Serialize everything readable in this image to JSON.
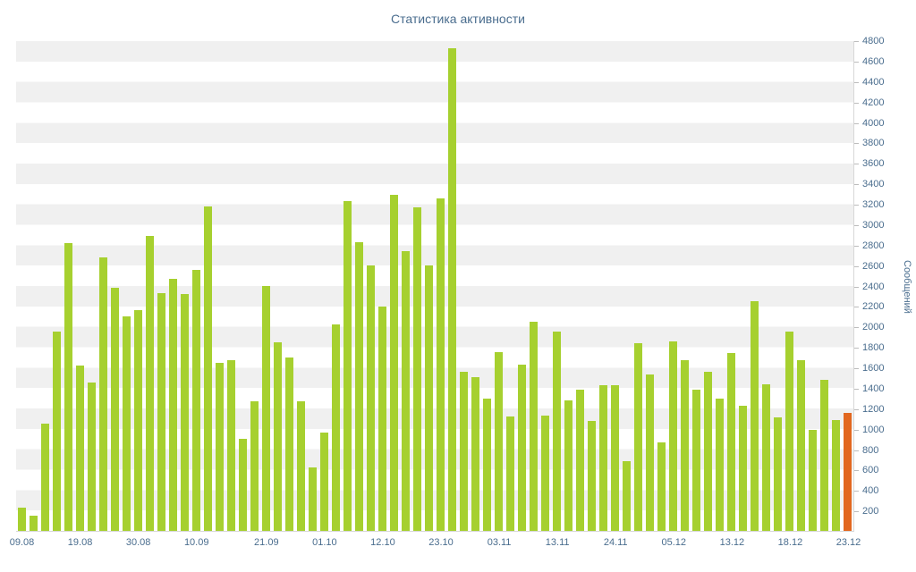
{
  "page": {
    "background": "#ffffff"
  },
  "chart_data": {
    "type": "bar",
    "title": "Статистика активности",
    "xlabel": "",
    "ylabel": "Сообщений",
    "y_axis_side": "right",
    "ylim": [
      0,
      4800
    ],
    "y_tick_step": 200,
    "grid": "striped-horizontal-bands",
    "legend": "none",
    "y_ticks": [
      200,
      400,
      600,
      800,
      1000,
      1200,
      1400,
      1600,
      1800,
      2000,
      2200,
      2400,
      2600,
      2800,
      3000,
      3200,
      3400,
      3600,
      3800,
      4000,
      4200,
      4400,
      4600,
      4800
    ],
    "x_ticks": [
      {
        "label": "09.08",
        "index": 0
      },
      {
        "label": "19.08",
        "index": 5
      },
      {
        "label": "30.08",
        "index": 10
      },
      {
        "label": "10.09",
        "index": 15
      },
      {
        "label": "21.09",
        "index": 21
      },
      {
        "label": "01.10",
        "index": 26
      },
      {
        "label": "12.10",
        "index": 31
      },
      {
        "label": "23.10",
        "index": 36
      },
      {
        "label": "03.11",
        "index": 41
      },
      {
        "label": "13.11",
        "index": 46
      },
      {
        "label": "24.11",
        "index": 51
      },
      {
        "label": "05.12",
        "index": 56
      },
      {
        "label": "13.12",
        "index": 61
      },
      {
        "label": "18.12",
        "index": 66
      },
      {
        "label": "23.12",
        "index": 71
      }
    ],
    "values": [
      230,
      150,
      1050,
      1950,
      2820,
      1620,
      1450,
      2680,
      2380,
      2100,
      2160,
      2890,
      2330,
      2470,
      2320,
      2560,
      3180,
      1650,
      1670,
      900,
      1270,
      2400,
      1850,
      1700,
      1270,
      620,
      960,
      2020,
      3230,
      2830,
      2600,
      2200,
      3290,
      2740,
      3170,
      2600,
      3260,
      4730,
      1560,
      1510,
      1300,
      1750,
      1120,
      1630,
      2050,
      1130,
      1950,
      1280,
      1380,
      1080,
      1430,
      1430,
      680,
      1840,
      1530,
      870,
      1860,
      1670,
      1380,
      1560,
      1300,
      1740,
      1230,
      2250,
      1440,
      1110,
      1950,
      1670,
      990,
      1480,
      1090,
      1160
    ],
    "highlight_last_bar": true,
    "colors": {
      "bar": "#a6d02f",
      "highlight_bar": "#e2671f",
      "text": "#4a6d8e",
      "stripe": "#f0f0f0",
      "axis_line": "#d8d8d8"
    }
  }
}
